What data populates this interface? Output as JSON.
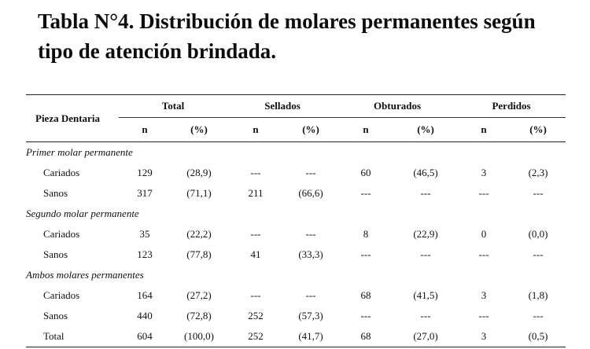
{
  "title_line1": "Tabla N°4. Distribución de molares permanentes según",
  "title_line2": "tipo de atención brindada.",
  "header": {
    "piece": "Pieza Dentaria",
    "groups": [
      "Total",
      "Sellados",
      "Obturados",
      "Perdidos"
    ],
    "sub": [
      "n",
      "(%)",
      "n",
      "(%)",
      "n",
      "(%)",
      "n",
      "(%)"
    ]
  },
  "sections": [
    {
      "label": "Primer molar permanente",
      "rows": [
        {
          "label": "Cariados",
          "cells": [
            "129",
            "(28,9)",
            "---",
            "---",
            "60",
            "(46,5)",
            "3",
            "(2,3)"
          ]
        },
        {
          "label": "Sanos",
          "cells": [
            "317",
            "(71,1)",
            "211",
            "(66,6)",
            "---",
            "---",
            "---",
            "---"
          ]
        }
      ]
    },
    {
      "label": "Segundo molar permanente",
      "rows": [
        {
          "label": "Cariados",
          "cells": [
            "35",
            "(22,2)",
            "---",
            "---",
            "8",
            "(22,9)",
            "0",
            "(0,0)"
          ]
        },
        {
          "label": "Sanos",
          "cells": [
            "123",
            "(77,8)",
            "41",
            "(33,3)",
            "---",
            "---",
            "---",
            "---"
          ]
        }
      ]
    },
    {
      "label": "Ambos molares permanentes",
      "rows": [
        {
          "label": "Cariados",
          "cells": [
            "164",
            "(27,2)",
            "---",
            "---",
            "68",
            "(41,5)",
            "3",
            "(1,8)"
          ]
        },
        {
          "label": "Sanos",
          "cells": [
            "440",
            "(72,8)",
            "252",
            "(57,3)",
            "---",
            "---",
            "---",
            "---"
          ]
        },
        {
          "label": "Total",
          "cells": [
            "604",
            "(100,0)",
            "252",
            "(41,7)",
            "68",
            "(27,0)",
            "3",
            "(0,5)"
          ]
        }
      ]
    }
  ]
}
